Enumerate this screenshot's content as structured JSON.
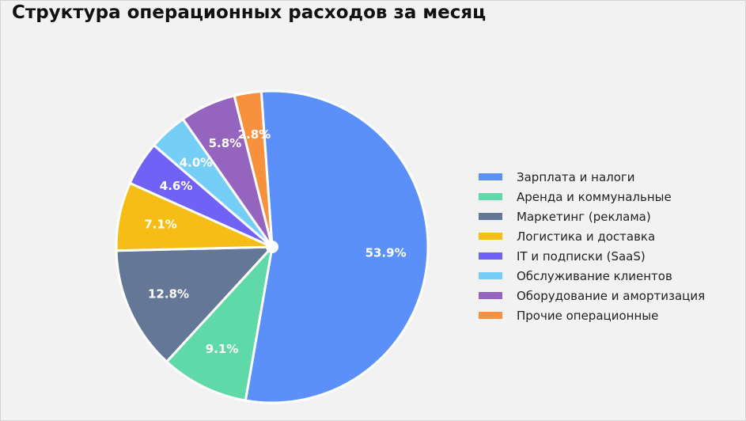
{
  "chart_data": {
    "type": "pie",
    "title": "Структура операционных расходов за месяц",
    "start_angle_deg": -4,
    "direction": "clockwise",
    "legend_position": "right",
    "slices": [
      {
        "label": "Зарплата и налоги",
        "value": 53.9,
        "value_label": "53.9%",
        "color": "#5b8ff9"
      },
      {
        "label": "Аренда и коммунальные",
        "value": 9.1,
        "value_label": "9.1%",
        "color": "#5fd9a8"
      },
      {
        "label": "Маркетинг (реклама)",
        "value": 12.8,
        "value_label": "12.8%",
        "color": "#647797"
      },
      {
        "label": "Логистика и доставка",
        "value": 7.1,
        "value_label": "7.1%",
        "color": "#f6bd16"
      },
      {
        "label": "IT и подписки (SaaS)",
        "value": 4.6,
        "value_label": "4.6%",
        "color": "#7162f7"
      },
      {
        "label": "Обслуживание клиентов",
        "value": 4.0,
        "value_label": "4.0%",
        "color": "#74cef5"
      },
      {
        "label": "Оборудование и амортизация",
        "value": 5.8,
        "value_label": "5.8%",
        "color": "#9564be"
      },
      {
        "label": "Прочие операционные",
        "value": 2.8,
        "value_label": "2.8%",
        "color": "#f7913e"
      }
    ]
  }
}
